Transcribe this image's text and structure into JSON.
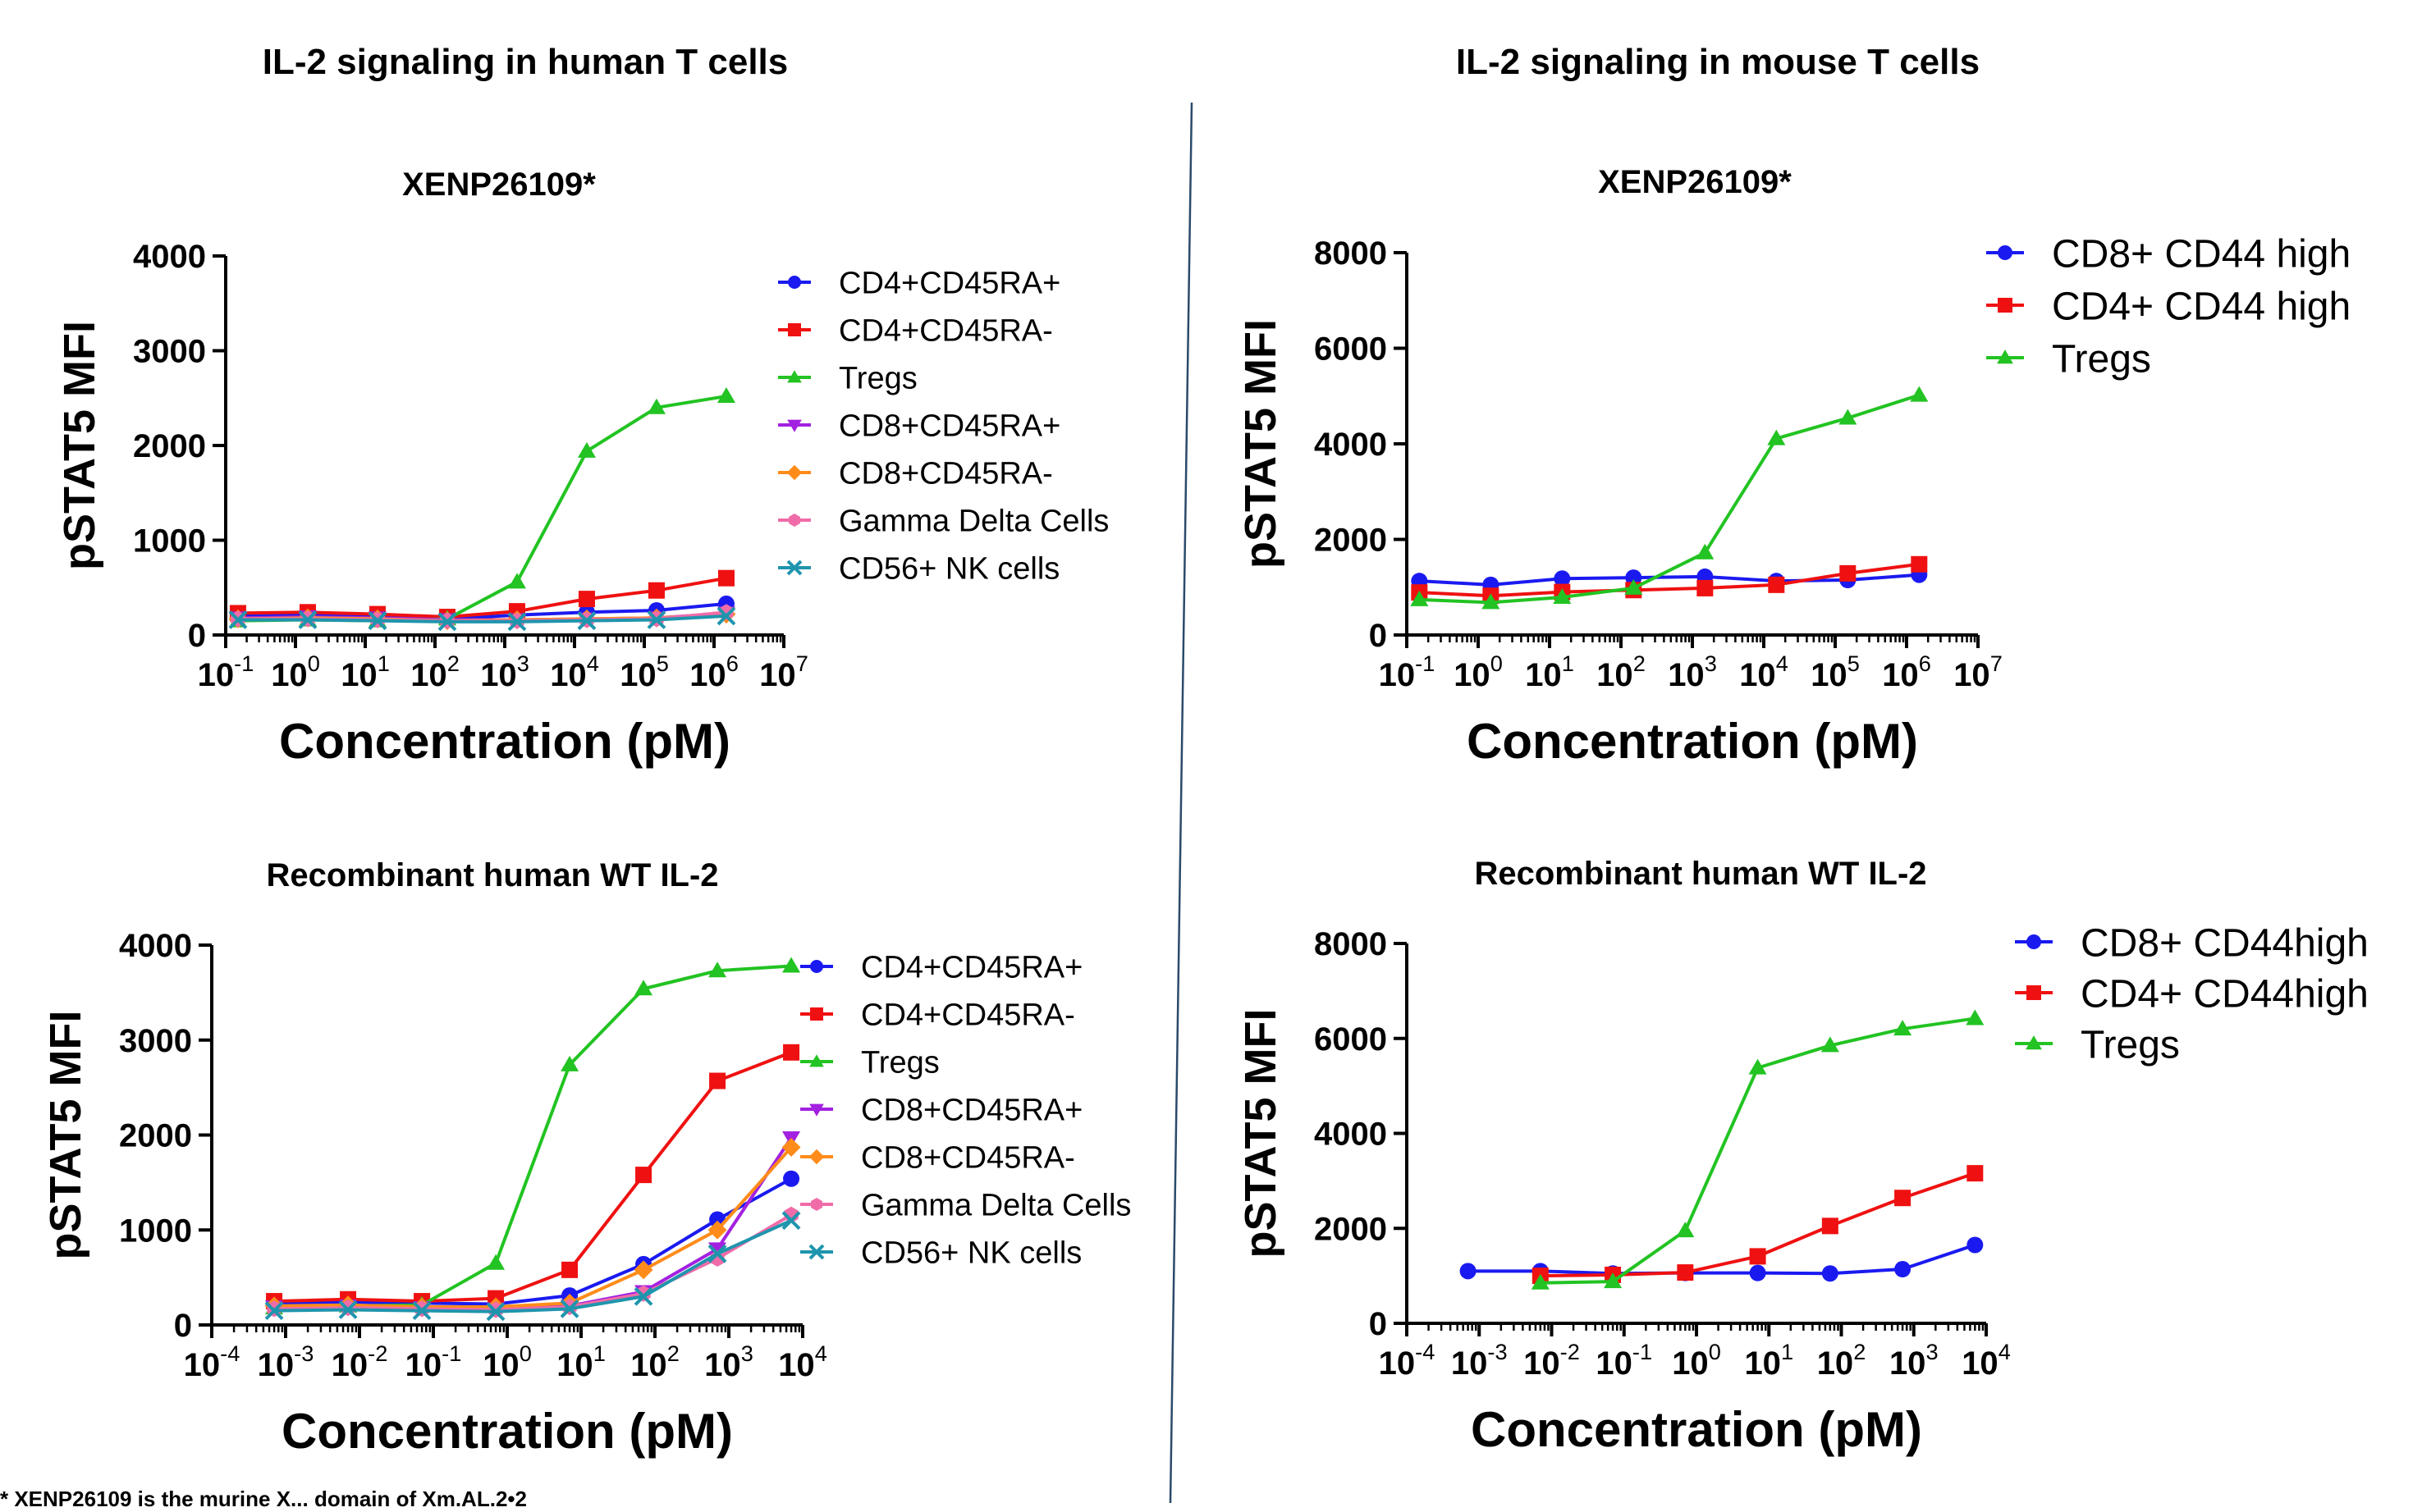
{
  "sections": [
    {
      "title": "IL-2 signaling in human T cells"
    },
    {
      "title": "IL-2 signaling in mouse T cells"
    }
  ],
  "footnote": "* XENP26109 is the murine X... domain of Xm.AL.2•2",
  "colors": {
    "blue": "#1a1af0",
    "red": "#ef1111",
    "green": "#22c322",
    "purple": "#a321e0",
    "orange": "#ff8c1a",
    "pink": "#f06ca8",
    "teal": "#1f95ad",
    "divider": "#2b4a6a"
  },
  "chart_data": [
    {
      "id": "human-xenp",
      "type": "line",
      "title": "XENP26109*",
      "xlabel": "Concentration (pM)",
      "ylabel": "pSTAT5 MFI",
      "xscale": "log10",
      "xlim": [
        0.1,
        10000000
      ],
      "ylim": [
        0,
        4000
      ],
      "xticks": [
        "10-1",
        "100",
        "101",
        "102",
        "103",
        "104",
        "105",
        "106",
        "107"
      ],
      "yticks": [
        "0",
        "1000",
        "2000",
        "3000",
        "4000"
      ],
      "legend_position": "right",
      "x": [
        0.15,
        1.5,
        15,
        150,
        1500,
        15000,
        150000,
        1500000
      ],
      "series": [
        {
          "name": "CD4+CD45RA+",
          "color": "blue",
          "marker": "circle",
          "values": [
            200,
            210,
            190,
            170,
            210,
            240,
            260,
            330
          ]
        },
        {
          "name": "CD4+CD45RA-",
          "color": "red",
          "marker": "square",
          "values": [
            230,
            240,
            220,
            190,
            250,
            380,
            470,
            600
          ]
        },
        {
          "name": "Tregs",
          "color": "green",
          "marker": "triangle-up",
          "values": [
            150,
            160,
            150,
            170,
            560,
            1940,
            2400,
            2520
          ]
        },
        {
          "name": "CD8+CD45RA+",
          "color": "purple",
          "marker": "triangle-down",
          "values": [
            180,
            190,
            180,
            160,
            160,
            170,
            180,
            230
          ]
        },
        {
          "name": "CD8+CD45RA-",
          "color": "orange",
          "marker": "diamond",
          "values": [
            170,
            180,
            170,
            150,
            160,
            170,
            180,
            220
          ]
        },
        {
          "name": "Gamma Delta Cells",
          "color": "pink",
          "marker": "hexagon",
          "values": [
            170,
            170,
            160,
            150,
            150,
            160,
            170,
            240
          ]
        },
        {
          "name": "CD56+ NK cells",
          "color": "teal",
          "marker": "x",
          "values": [
            160,
            160,
            150,
            140,
            140,
            150,
            160,
            200
          ]
        }
      ]
    },
    {
      "id": "mouse-xenp",
      "type": "line",
      "title": "XENP26109*",
      "xlabel": "Concentration (pM)",
      "ylabel": "pSTAT5 MFI",
      "xscale": "log10",
      "xlim": [
        0.1,
        10000000
      ],
      "ylim": [
        0,
        8000
      ],
      "xticks": [
        "10-1",
        "100",
        "101",
        "102",
        "103",
        "104",
        "105",
        "106",
        "107"
      ],
      "yticks": [
        "0",
        "2000",
        "4000",
        "6000",
        "8000"
      ],
      "legend_position": "top-right",
      "x": [
        0.15,
        1.5,
        15,
        150,
        1500,
        15000,
        150000,
        1500000
      ],
      "series": [
        {
          "name": "CD8+ CD44 high",
          "color": "blue",
          "marker": "circle",
          "values": [
            1130,
            1050,
            1180,
            1200,
            1220,
            1130,
            1150,
            1260
          ]
        },
        {
          "name": "CD4+ CD44 high",
          "color": "red",
          "marker": "square",
          "values": [
            890,
            820,
            900,
            940,
            980,
            1050,
            1290,
            1480
          ]
        },
        {
          "name": "Tregs",
          "color": "green",
          "marker": "triangle-up",
          "values": [
            740,
            680,
            790,
            980,
            1720,
            4110,
            4540,
            5020
          ]
        }
      ]
    },
    {
      "id": "human-wt",
      "type": "line",
      "title": "Recombinant human WT IL-2",
      "xlabel": "Concentration (pM)",
      "ylabel": "pSTAT5 MFI",
      "xscale": "log10",
      "xlim": [
        0.0001,
        10000
      ],
      "ylim": [
        0,
        4000
      ],
      "xticks": [
        "10-4",
        "10-3",
        "10-2",
        "10-1",
        "100",
        "101",
        "102",
        "103",
        "104"
      ],
      "yticks": [
        "0",
        "1000",
        "2000",
        "3000",
        "4000"
      ],
      "legend_position": "right",
      "x": [
        0.0007,
        0.007,
        0.07,
        0.7,
        7,
        70,
        700,
        7000
      ],
      "series": [
        {
          "name": "CD4+CD45RA+",
          "color": "blue",
          "marker": "circle",
          "values": [
            230,
            240,
            230,
            220,
            310,
            640,
            1110,
            1540
          ]
        },
        {
          "name": "CD4+CD45RA-",
          "color": "red",
          "marker": "square",
          "values": [
            250,
            270,
            250,
            280,
            580,
            1580,
            2570,
            2870
          ]
        },
        {
          "name": "Tregs",
          "color": "green",
          "marker": "triangle-up",
          "values": [
            180,
            200,
            210,
            650,
            2740,
            3540,
            3730,
            3780
          ]
        },
        {
          "name": "CD8+CD45RA+",
          "color": "purple",
          "marker": "triangle-down",
          "values": [
            190,
            200,
            180,
            170,
            200,
            350,
            800,
            1970
          ]
        },
        {
          "name": "CD8+CD45RA-",
          "color": "orange",
          "marker": "diamond",
          "values": [
            200,
            210,
            190,
            190,
            230,
            580,
            1000,
            1870
          ]
        },
        {
          "name": "Gamma Delta Cells",
          "color": "pink",
          "marker": "hexagon",
          "values": [
            170,
            180,
            170,
            160,
            190,
            330,
            700,
            1160
          ]
        },
        {
          "name": "CD56+ NK cells",
          "color": "teal",
          "marker": "x",
          "values": [
            150,
            160,
            150,
            140,
            170,
            300,
            750,
            1100
          ]
        }
      ]
    },
    {
      "id": "mouse-wt",
      "type": "line",
      "title": "Recombinant human WT IL-2",
      "xlabel": "Concentration (pM)",
      "ylabel": "pSTAT5 MFI",
      "xscale": "log10",
      "xlim": [
        0.0001,
        10000
      ],
      "ylim": [
        0,
        8000
      ],
      "xticks": [
        "10-4",
        "10-3",
        "10-2",
        "10-1",
        "100",
        "101",
        "102",
        "103",
        "104"
      ],
      "yticks": [
        "0",
        "2000",
        "4000",
        "6000",
        "8000"
      ],
      "legend_position": "top-right",
      "series": [
        {
          "name": "CD8+ CD44high",
          "color": "blue",
          "marker": "circle",
          "x": [
            0.0007,
            0.007,
            0.07,
            0.7,
            7,
            70,
            700,
            7000
          ],
          "values": [
            1100,
            1100,
            1050,
            1060,
            1060,
            1050,
            1140,
            1650
          ]
        },
        {
          "name": "CD4+ CD44high",
          "color": "red",
          "marker": "square",
          "x": [
            0.007,
            0.07,
            0.7,
            7,
            70,
            700,
            7000
          ],
          "values": [
            1000,
            1020,
            1070,
            1410,
            2050,
            2640,
            3160
          ]
        },
        {
          "name": "Tregs",
          "color": "green",
          "marker": "triangle-up",
          "x": [
            0.007,
            0.07,
            0.7,
            7,
            70,
            700,
            7000
          ],
          "values": [
            850,
            880,
            1950,
            5380,
            5850,
            6200,
            6420
          ]
        }
      ]
    }
  ]
}
